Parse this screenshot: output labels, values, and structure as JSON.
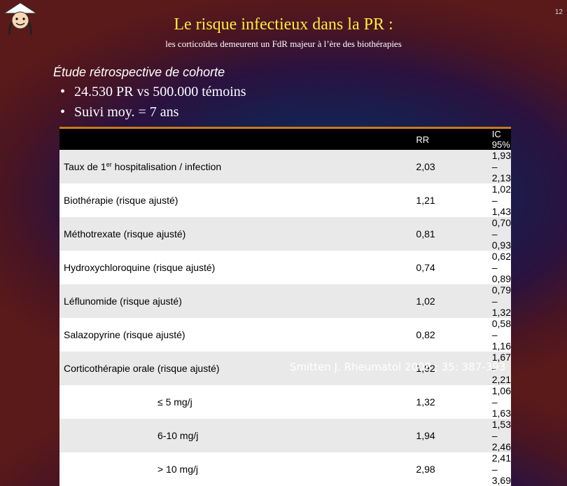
{
  "slide_number": "12",
  "title": "Le risque infectieux dans la PR :",
  "subtitle": "les corticoïdes demeurent un FdR majeur à l’ère des biothérapies",
  "study_type": "Étude rétrospective de cohorte",
  "bullets": [
    "24.530 PR vs 500.000 témoins",
    "Suivi moy. = 7 ans"
  ],
  "table": {
    "headers": [
      "",
      "RR",
      "IC 95%"
    ],
    "first_row": {
      "label_pre": "Taux de 1",
      "label_sup": "er",
      "label_post": " hospitalisation / infection",
      "rr": "2,03",
      "ci": "1,93 – 2,13"
    },
    "rows": [
      {
        "label": "Biothérapie (risque ajusté)",
        "rr": "1,21",
        "ci": "1,02 – 1,43"
      },
      {
        "label": "Méthotrexate (risque ajusté)",
        "rr": "0,81",
        "ci": "0,70 – 0,93"
      },
      {
        "label": "Hydroxychloroquine (risque ajusté)",
        "rr": "0,74",
        "ci": "0,62 – 0,89"
      },
      {
        "label": "Léflunomide (risque ajusté)",
        "rr": "1,02",
        "ci": "0,79 – 1,32"
      },
      {
        "label": "Salazopyrine (risque ajusté)",
        "rr": "0,82",
        "ci": "0,58 – 1,16"
      },
      {
        "label": "Corticothérapie orale (risque ajusté)",
        "rr": "1,92",
        "ci": "1,67 – 2,21"
      }
    ],
    "sub_rows": [
      {
        "label": "≤ 5  mg/j",
        "rr": "1,32",
        "ci": "1,06 – 1,63"
      },
      {
        "label": "6-10 mg/j",
        "rr": "1,94",
        "ci": "1,53 – 2,46"
      },
      {
        "label": "> 10 mg/j",
        "rr": "2,98",
        "ci": "2,41 – 3,69"
      }
    ]
  },
  "citation": "Smitten J. Rheumatol 2008 ; 35: 387-393",
  "logo_icon": "cartoon-face-with-hat-icon",
  "colors": {
    "title": "#ffeb3b",
    "table_border": "#c87a1e"
  }
}
